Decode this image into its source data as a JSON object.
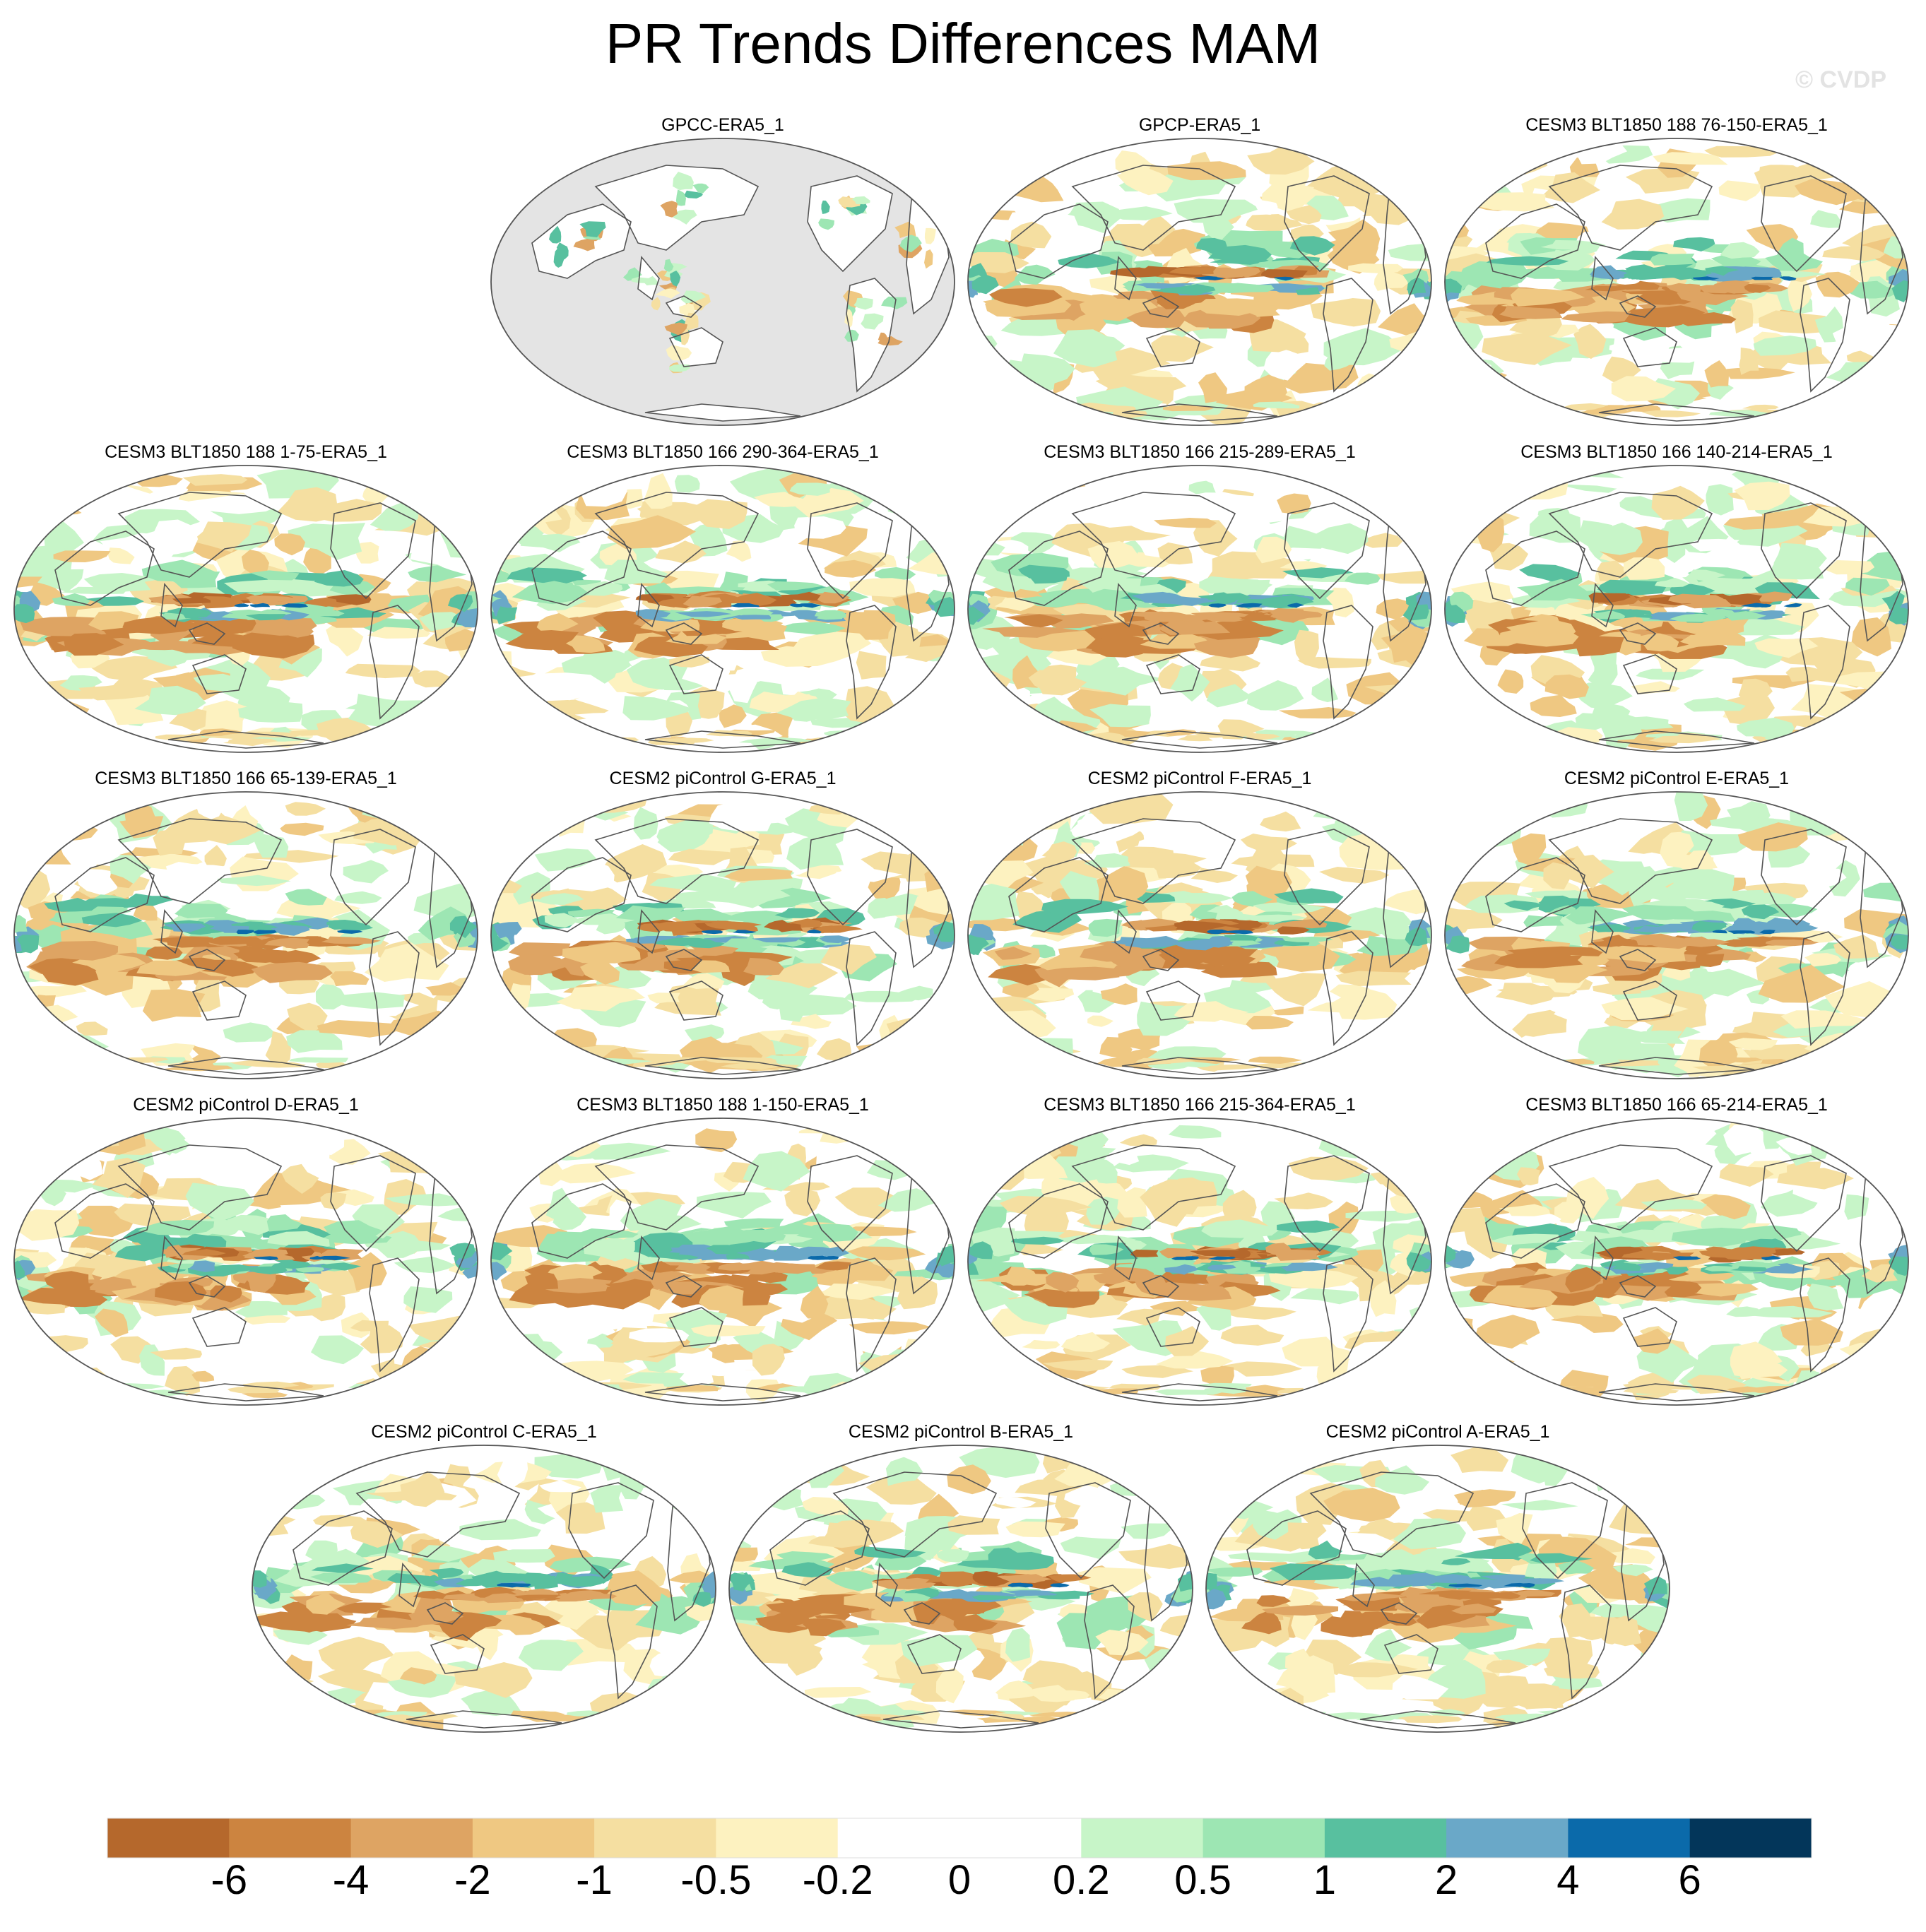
{
  "title": "PR Trends Differences MAM",
  "watermark": "© CVDP",
  "chart_data": {
    "type": "heatmap",
    "title": "PR Trends Differences MAM",
    "projection": "Robinson (Pacific-centered) global maps",
    "variable": "PR (precipitation) trend difference, MAM season",
    "colorbar": {
      "levels": [
        "-6",
        "-4",
        "-2",
        "-1",
        "-0.5",
        "-0.2",
        "0",
        "0.2",
        "0.5",
        "1",
        "2",
        "4",
        "6"
      ],
      "colors": [
        "#b5682c",
        "#cc8440",
        "#dea463",
        "#efc882",
        "#f5dfa1",
        "#fdf2c0",
        "#ffffff",
        "#ffffff",
        "#c7f5c8",
        "#9de6b3",
        "#58c09f",
        "#6aa8c8",
        "#0b6aaa",
        "#03365a"
      ]
    },
    "panels": [
      {
        "label": "GPCC-ERA5_1",
        "land_only": true
      },
      {
        "label": "GPCP-ERA5_1"
      },
      {
        "label": "CESM3 BLT1850 188 76-150-ERA5_1"
      },
      {
        "label": "CESM3 BLT1850 188 1-75-ERA5_1"
      },
      {
        "label": "CESM3 BLT1850 166 290-364-ERA5_1"
      },
      {
        "label": "CESM3 BLT1850 166 215-289-ERA5_1"
      },
      {
        "label": "CESM3 BLT1850 166 140-214-ERA5_1"
      },
      {
        "label": "CESM3 BLT1850 166 65-139-ERA5_1"
      },
      {
        "label": "CESM2 piControl G-ERA5_1"
      },
      {
        "label": "CESM2 piControl F-ERA5_1"
      },
      {
        "label": "CESM2 piControl E-ERA5_1"
      },
      {
        "label": "CESM2 piControl D-ERA5_1"
      },
      {
        "label": "CESM3 BLT1850 188 1-150-ERA5_1"
      },
      {
        "label": "CESM3 BLT1850 166 215-364-ERA5_1"
      },
      {
        "label": "CESM3 BLT1850 166 65-214-ERA5_1"
      },
      {
        "label": "CESM2 piControl C-ERA5_1"
      },
      {
        "label": "CESM2 piControl B-ERA5_1"
      },
      {
        "label": "CESM2 piControl A-ERA5_1"
      }
    ]
  }
}
